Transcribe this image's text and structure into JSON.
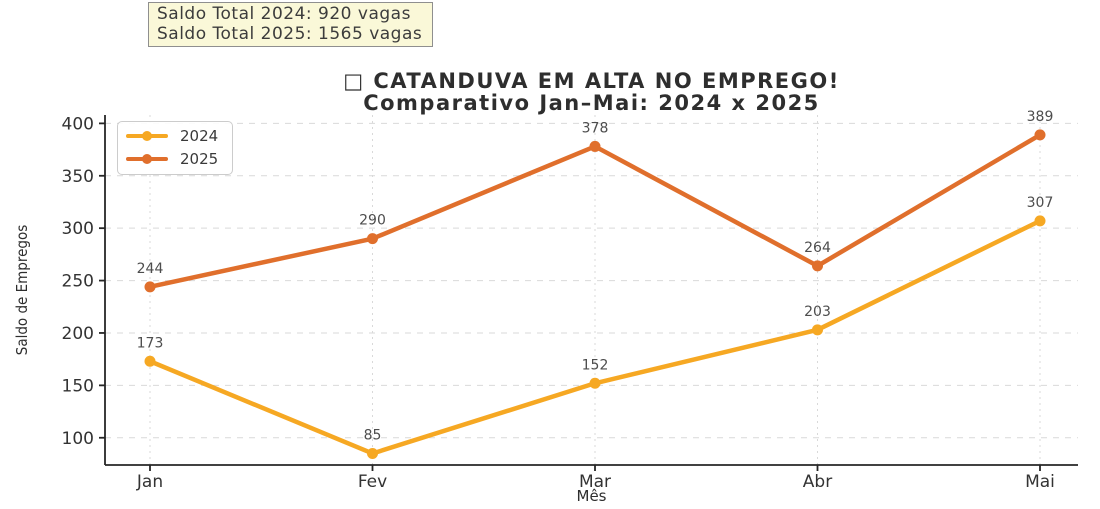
{
  "annotation_box": {
    "line1": "Saldo Total 2024: 920 vagas",
    "line2": "Saldo Total 2025: 1565 vagas",
    "bg": "#faf8d8"
  },
  "chart_data": {
    "type": "line",
    "title_line1": "□ CATANDUVA EM ALTA NO EMPREGO!",
    "title_line2": "Comparativo Jan–Mai: 2024 x 2025",
    "xlabel": "Mês",
    "ylabel": "Saldo de Empregos",
    "categories": [
      "Jan",
      "Fev",
      "Mar",
      "Abr",
      "Mai"
    ],
    "series": [
      {
        "name": "2024",
        "color": "#F6A823",
        "values": [
          173,
          85,
          152,
          203,
          307
        ]
      },
      {
        "name": "2025",
        "color": "#E06F2C",
        "values": [
          244,
          290,
          378,
          264,
          389
        ]
      }
    ],
    "yticks": [
      100,
      150,
      200,
      250,
      300,
      350,
      400
    ],
    "ylim": [
      74,
      408
    ],
    "grid": "dashed both directions",
    "legend_position": "upper left",
    "label_color": "#4d4d4d",
    "tick_color": "#333333",
    "spine_color": "#262626",
    "grid_color": "#d9d9d9"
  }
}
